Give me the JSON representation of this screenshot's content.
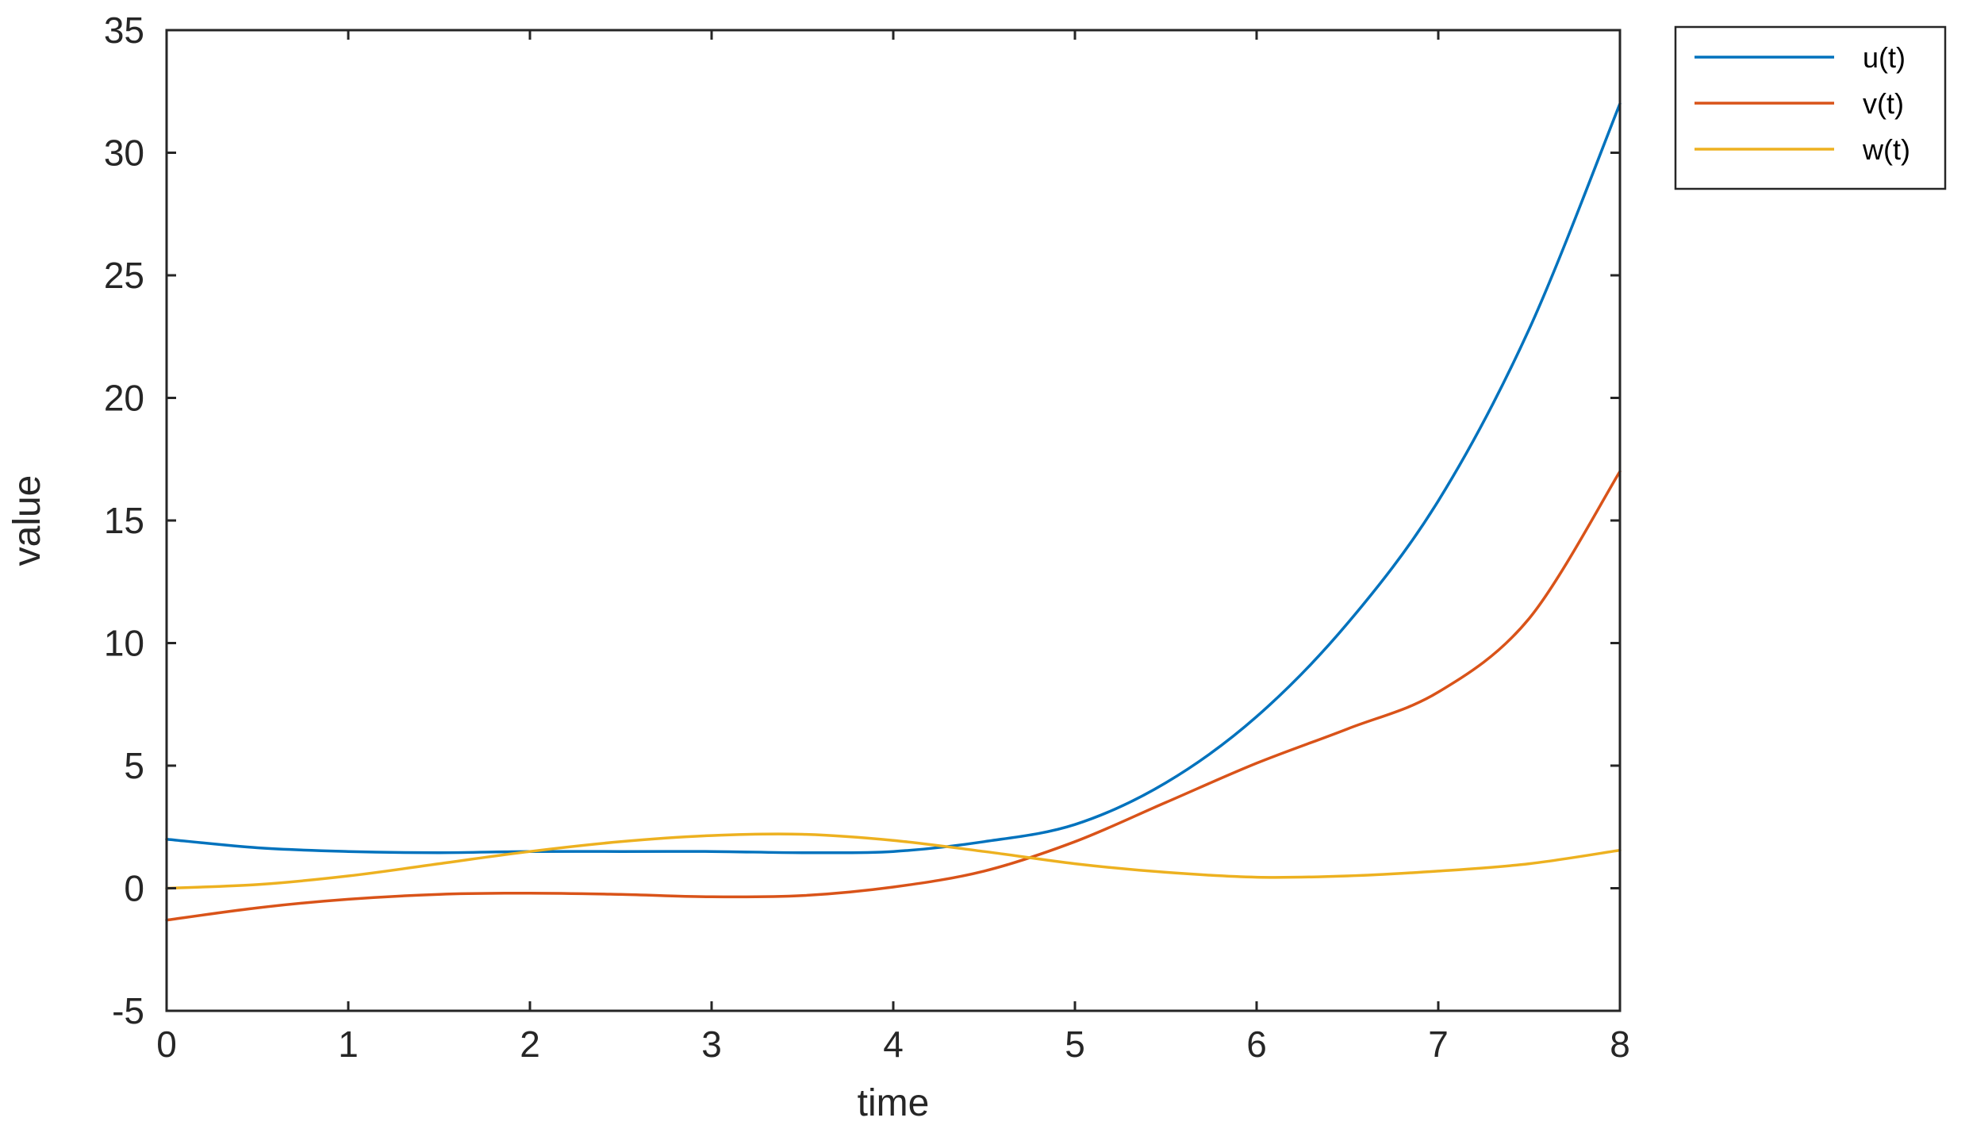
{
  "chart_data": {
    "type": "line",
    "title": "",
    "xlabel": "time",
    "ylabel": "value",
    "xlim": [
      0,
      8
    ],
    "ylim": [
      -5,
      35
    ],
    "xticks": [
      0,
      1,
      2,
      3,
      4,
      5,
      6,
      7,
      8
    ],
    "xtick_labels": [
      "0",
      "1",
      "2",
      "3",
      "4",
      "5",
      "6",
      "7",
      "8"
    ],
    "yticks": [
      -5,
      0,
      5,
      10,
      15,
      20,
      25,
      30,
      35
    ],
    "ytick_labels": [
      "-5",
      "0",
      "5",
      "10",
      "15",
      "20",
      "25",
      "30",
      "35"
    ],
    "grid": false,
    "legend_position": "outside-top-right",
    "x": [
      0,
      0.5,
      1,
      1.5,
      2,
      2.5,
      3,
      3.5,
      4,
      4.5,
      5,
      5.5,
      6,
      6.5,
      7,
      7.5,
      8
    ],
    "series": [
      {
        "name": "u(t)",
        "color": "#0072BD",
        "values": [
          2.0,
          1.65,
          1.5,
          1.45,
          1.5,
          1.5,
          1.5,
          1.45,
          1.5,
          1.9,
          2.6,
          4.3,
          7.0,
          10.8,
          15.8,
          22.8,
          32.0
        ]
      },
      {
        "name": "v(t)",
        "color": "#D95319",
        "values": [
          -1.3,
          -0.8,
          -0.45,
          -0.25,
          -0.2,
          -0.25,
          -0.35,
          -0.3,
          0.05,
          0.7,
          1.9,
          3.5,
          5.1,
          6.5,
          8.0,
          11.0,
          17.0
        ]
      },
      {
        "name": "w(t)",
        "color": "#EDB120",
        "values": [
          0.0,
          0.15,
          0.5,
          1.0,
          1.5,
          1.9,
          2.15,
          2.2,
          1.95,
          1.5,
          1.0,
          0.65,
          0.45,
          0.5,
          0.7,
          1.0,
          1.55
        ]
      }
    ]
  }
}
